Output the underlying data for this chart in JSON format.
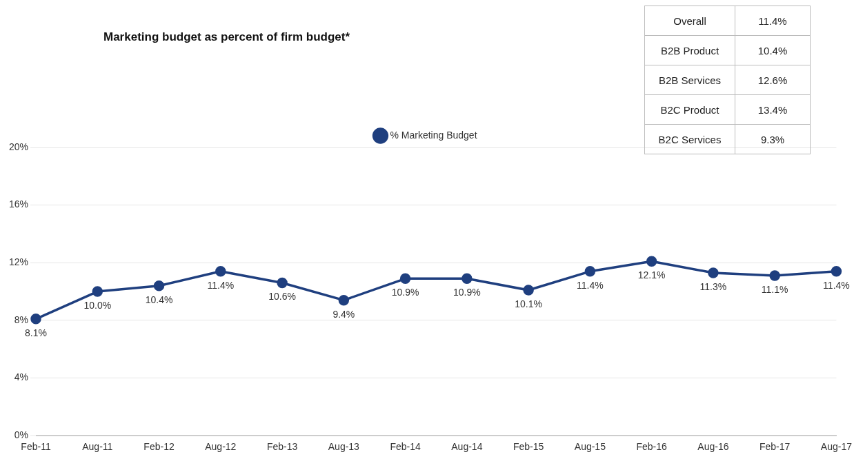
{
  "chart_data": [
    {
      "type": "line",
      "title": "Marketing budget as percent of firm budget*",
      "categories": [
        "Feb-11",
        "Aug-11",
        "Feb-12",
        "Aug-12",
        "Feb-13",
        "Aug-13",
        "Feb-14",
        "Aug-14",
        "Feb-15",
        "Aug-15",
        "Feb-16",
        "Aug-16",
        "Feb-17",
        "Aug-17"
      ],
      "series": [
        {
          "name": "% Marketing Budget",
          "color": "#1f3f7f",
          "values": [
            8.1,
            10.0,
            10.4,
            11.4,
            10.6,
            9.4,
            10.9,
            10.9,
            10.1,
            11.4,
            12.1,
            11.3,
            11.1,
            11.4
          ],
          "value_labels": [
            "8.1%",
            "10.0%",
            "10.4%",
            "11.4%",
            "10.6%",
            "9.4%",
            "10.9%",
            "10.9%",
            "10.1%",
            "11.4%",
            "12.1%",
            "11.3%",
            "11.1%",
            "11.4%"
          ]
        }
      ],
      "ylim": [
        0,
        20
      ],
      "yticks": [
        {
          "value": 0,
          "label": "0%"
        },
        {
          "value": 4,
          "label": "4%"
        },
        {
          "value": 8,
          "label": "8%"
        },
        {
          "value": 12,
          "label": "12%"
        },
        {
          "value": 16,
          "label": "16%"
        },
        {
          "value": 20,
          "label": "20%"
        }
      ],
      "grid": "y",
      "legend": "top",
      "marker": "circle",
      "line_style": "solid"
    },
    {
      "type": "other",
      "categories": [
        "Overall",
        "B2B Product",
        "B2B Services",
        "B2C Product",
        "B2C Services"
      ],
      "value_labels": [
        "11.4%",
        "10.4%",
        "12.6%",
        "13.4%",
        "9.3%"
      ]
    }
  ]
}
